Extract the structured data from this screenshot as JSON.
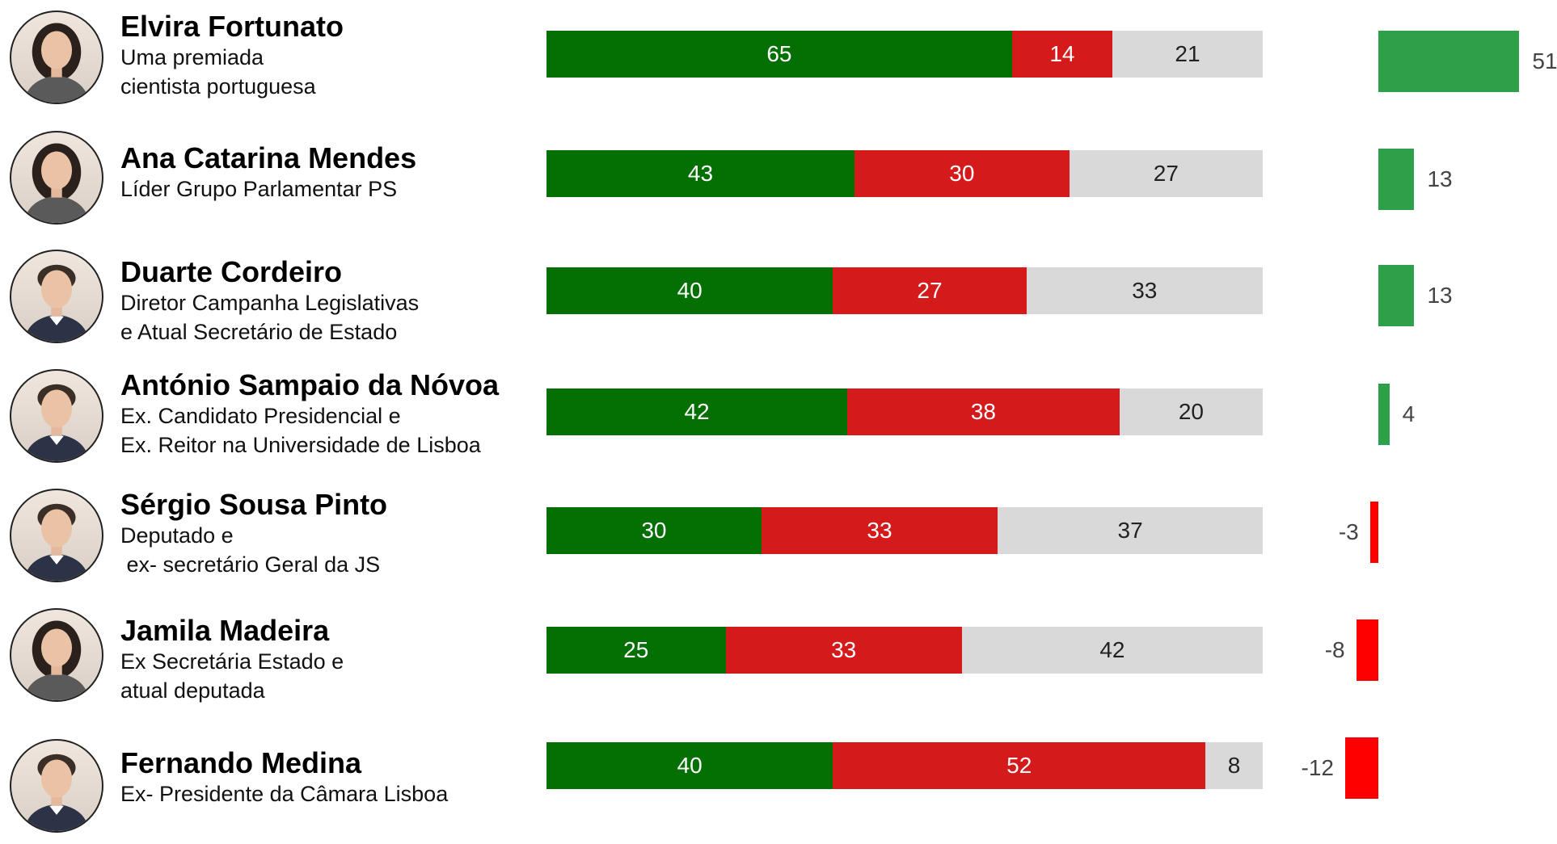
{
  "colors": {
    "favorable": "#047004",
    "unfavorable": "#d41a1a",
    "neutral": "#d9d9d9",
    "net_positive": "#2ea04a",
    "net_negative": "#ff0000"
  },
  "chart_data": {
    "type": "bar",
    "stacked": true,
    "categories": [
      "Elvira Fortunato",
      "Ana Catarina Mendes",
      "Duarte Cordeiro",
      "António Sampaio da Nóvoa",
      "Sérgio Sousa Pinto",
      "Jamila Madeira",
      "Fernando Medina"
    ],
    "series": [
      {
        "values": [
          65,
          43,
          40,
          42,
          30,
          25,
          40
        ]
      },
      {
        "values": [
          14,
          30,
          27,
          38,
          33,
          33,
          52
        ]
      },
      {
        "values": [
          21,
          27,
          33,
          20,
          37,
          42,
          8
        ]
      }
    ],
    "net": [
      51,
      13,
      13,
      4,
      -3,
      -8,
      -12
    ],
    "xlim": [
      0,
      100
    ],
    "grid": false,
    "legend": "none"
  },
  "people": [
    {
      "name": "Elvira Fortunato",
      "desc": [
        "Uma premiada",
        "cientista portuguesa"
      ],
      "icon": "woman-portrait-icon"
    },
    {
      "name": "Ana Catarina Mendes",
      "desc": [
        "Líder Grupo Parlamentar PS"
      ],
      "icon": "woman-portrait-icon"
    },
    {
      "name": "Duarte Cordeiro",
      "desc": [
        "Diretor Campanha Legislativas",
        "e Atual Secretário de Estado"
      ],
      "icon": "man-portrait-icon"
    },
    {
      "name": "António Sampaio da Nóvoa",
      "desc": [
        "Ex. Candidato Presidencial e",
        "Ex. Reitor na Universidade de Lisboa"
      ],
      "icon": "man-portrait-icon"
    },
    {
      "name": "Sérgio Sousa Pinto",
      "desc": [
        "Deputado e",
        " ex- secretário Geral da JS"
      ],
      "icon": "man-portrait-icon"
    },
    {
      "name": "Jamila Madeira",
      "desc": [
        "Ex Secretária Estado e",
        "atual deputada"
      ],
      "icon": "woman-portrait-icon"
    },
    {
      "name": "Fernando Medina",
      "desc": [
        "Ex- Presidente da Câmara Lisboa"
      ],
      "icon": "man-portrait-icon"
    }
  ]
}
